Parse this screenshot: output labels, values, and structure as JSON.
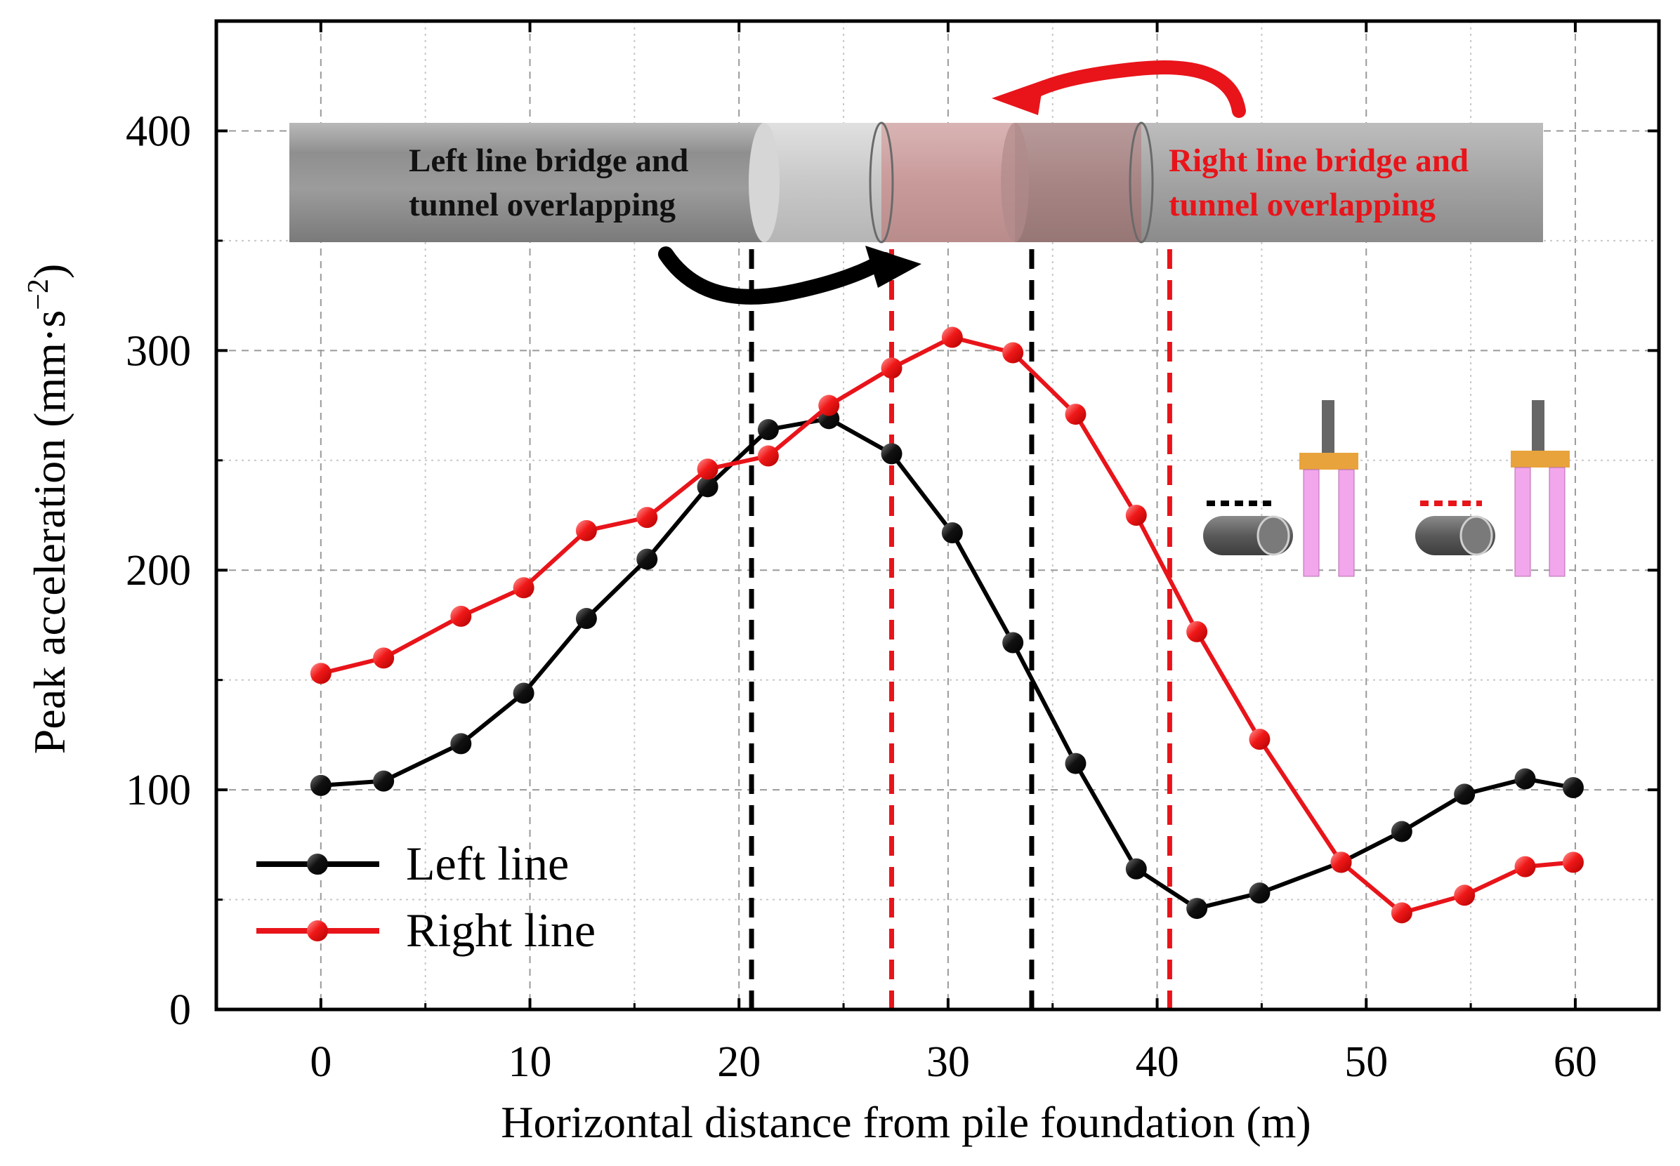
{
  "chart_data": {
    "type": "line",
    "xlabel": "Horizontal distance from pile foundation (m)",
    "ylabel": "Peak acceleration (mm·s",
    "ylabel_unit_sup": "−2",
    "ylabel_close": ")",
    "xlim": [
      -5,
      64
    ],
    "ylim": [
      0,
      450
    ],
    "xticks": [
      0,
      10,
      20,
      30,
      40,
      50,
      60
    ],
    "yticks": [
      0,
      100,
      200,
      300,
      400
    ],
    "grid": true,
    "legend_position": "bottom-left",
    "series": [
      {
        "name": "Left line",
        "color": "#000000",
        "x": [
          0,
          3,
          6.7,
          9.7,
          12.7,
          15.6,
          18.5,
          21.4,
          24.3,
          27.3,
          30.2,
          33.1,
          36.1,
          39.0,
          41.9,
          44.9,
          48.8,
          51.7,
          54.7,
          57.6,
          59.9
        ],
        "y": [
          102,
          104,
          121,
          144,
          178,
          205,
          238,
          264,
          269,
          253,
          217,
          167,
          112,
          64,
          46,
          53,
          67,
          81,
          98,
          105,
          101
        ]
      },
      {
        "name": "Right line",
        "color": "#e8141a",
        "x": [
          0,
          3,
          6.7,
          9.7,
          12.7,
          15.6,
          18.5,
          21.4,
          24.3,
          27.3,
          30.2,
          33.1,
          36.1,
          39.0,
          41.9,
          44.9,
          48.8,
          51.7,
          54.7,
          57.6,
          59.9
        ],
        "y": [
          153,
          160,
          179,
          192,
          218,
          224,
          246,
          252,
          275,
          292,
          306,
          299,
          271,
          225,
          172,
          123,
          67,
          44,
          52,
          65,
          67
        ]
      }
    ],
    "reference_lines": [
      {
        "x": 20.6,
        "color": "#000000"
      },
      {
        "x": 27.3,
        "color": "#e8141a"
      },
      {
        "x": 34.0,
        "color": "#000000"
      },
      {
        "x": 40.6,
        "color": "#e8141a"
      }
    ],
    "annotations": {
      "left_label_line1": "Left line bridge and",
      "left_label_line2": "tunnel overlapping",
      "right_label_line1": "Right line bridge and",
      "right_label_line2": "tunnel overlapping"
    }
  },
  "colors": {
    "left": "#000000",
    "right": "#e8141a",
    "pile_cap": "#e8a33c",
    "pile_body": "#f2a6ec",
    "tunnel": "#6c6c6c"
  }
}
